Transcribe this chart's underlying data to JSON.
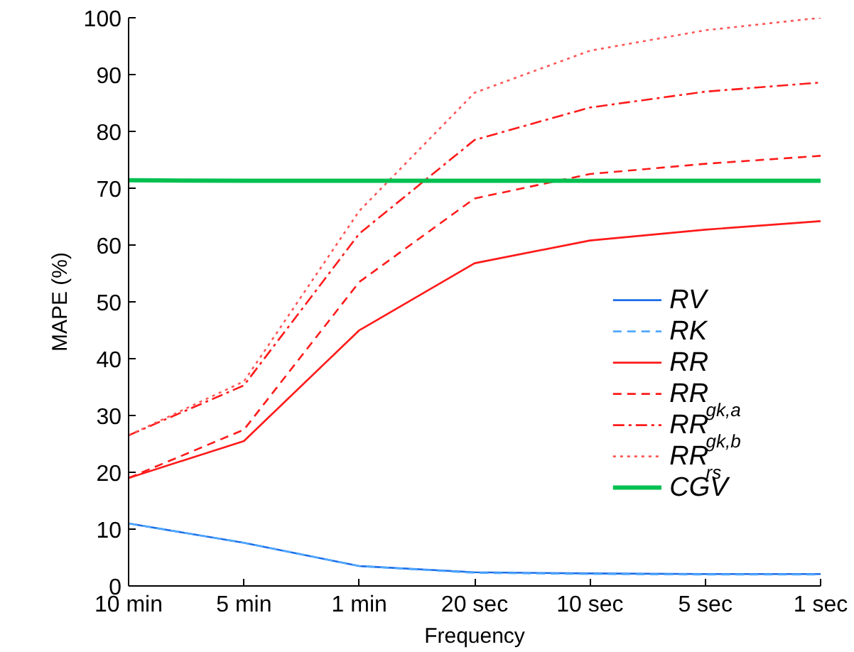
{
  "chart_data": {
    "type": "line",
    "xlabel": "Frequency",
    "ylabel": "MAPE (%)",
    "categories": [
      "10 min",
      "5 min",
      "1 min",
      "20 sec",
      "10 sec",
      "5 sec",
      "1 sec"
    ],
    "ylim": [
      0,
      100
    ],
    "yticks": [
      0,
      10,
      20,
      30,
      40,
      50,
      60,
      70,
      80,
      90,
      100
    ],
    "grid": false,
    "legend": "bottom right",
    "marker": "none",
    "series": [
      {
        "name": "RV",
        "color": "#1a6ee8",
        "line_style": "solid",
        "values": [
          11,
          7.6,
          3.5,
          2.4,
          2.2,
          2.1,
          2.1
        ]
      },
      {
        "name": "RK",
        "color": "#52a8ff",
        "line_style": "dashed",
        "values": [
          11,
          7.6,
          3.5,
          2.3,
          2.1,
          2.0,
          2.0
        ]
      },
      {
        "name": "RR",
        "color": "#ff1a1a",
        "line_style": "solid",
        "values": [
          19,
          25.5,
          45,
          56.8,
          60.8,
          62.7,
          64.2
        ]
      },
      {
        "name": "RR$_{gk,a}$",
        "color": "#ff1a1a",
        "line_style": "dashed",
        "values": [
          19,
          27.5,
          53.5,
          68.2,
          72.5,
          74.3,
          75.7
        ]
      },
      {
        "name": "RR$_{gk,b}$",
        "color": "#ff1a1a",
        "line_style": "dashdot",
        "values": [
          26.5,
          35.3,
          62,
          78.5,
          84.2,
          87,
          88.6
        ]
      },
      {
        "name": "RR$_{rs}$",
        "color": "#ff5555",
        "line_style": "dotted",
        "values": [
          26.5,
          36,
          66,
          86.8,
          94.2,
          97.8,
          100
        ]
      },
      {
        "name": "CGV",
        "color": "#00c050",
        "line_style": "solid",
        "values": [
          71.4,
          71.3,
          71.3,
          71.3,
          71.3,
          71.3,
          71.3
        ]
      }
    ]
  }
}
